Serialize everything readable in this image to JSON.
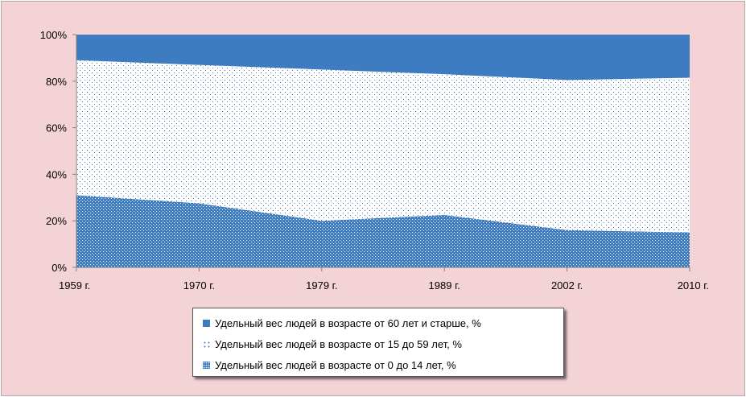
{
  "chart_data": {
    "type": "area",
    "stacked": "percent",
    "categories": [
      "1959 г.",
      "1970 г.",
      "1979 г.",
      "1989 г.",
      "2002 г.",
      "2010 г."
    ],
    "ylim": [
      0,
      100
    ],
    "y_ticks": [
      "0%",
      "20%",
      "40%",
      "60%",
      "80%",
      "100%"
    ],
    "grid": false,
    "legend_position": "bottom",
    "series": [
      {
        "name": "Удельный вес людей в возрасте от 60 лет и старше, %",
        "values": [
          11,
          13,
          15,
          17,
          19.5,
          18.5
        ],
        "color": "#3d7cc0",
        "fill": "solid"
      },
      {
        "name": "Удельный вес людей в возрасте от 15 до 59 лет, %",
        "values": [
          58,
          59.5,
          65,
          60.5,
          64.5,
          66.5
        ],
        "color": "#3d7cc0",
        "fill": "dotted"
      },
      {
        "name": "Удельный вес людей в возрасте от 0 до 14 лет, %",
        "values": [
          31,
          27.5,
          20,
          22.5,
          16,
          15
        ],
        "color": "#3d7cc0",
        "fill": "checked"
      }
    ]
  }
}
